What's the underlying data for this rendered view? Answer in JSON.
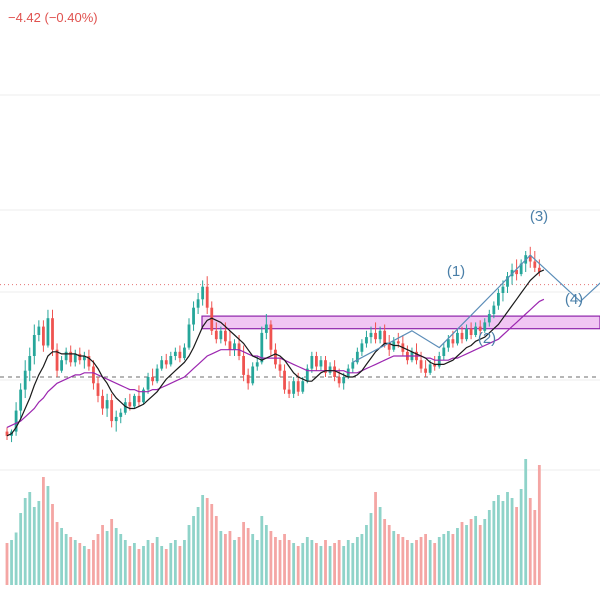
{
  "header": {
    "change_text": "−4.42 (−0.40%)"
  },
  "colors": {
    "up": "#26a69a",
    "down": "#ef5350",
    "ma_fast": "#1a1a1a",
    "ma_slow": "#9c27b0",
    "wave_line": "#5b8db8",
    "zone_fill": "#f1c6f3",
    "zone_border": "#8e24aa",
    "vol_up": "#8fd3c9",
    "vol_down": "#f4a6a4",
    "price_line": "#e57373",
    "support_line": "#6e6e6e",
    "grid": "#eeeeee"
  },
  "wave_labels": [
    "(1)",
    "(2)",
    "(3)",
    "(4)"
  ],
  "chart_data": {
    "type": "candlestick",
    "title": "",
    "xlabel": "",
    "ylabel": "",
    "ylim": [
      0,
      100
    ],
    "volume_ylim": [
      0,
      100
    ],
    "candles": [
      {
        "o": 4,
        "h": 6,
        "l": 0,
        "c": 2,
        "v": 28,
        "up": false
      },
      {
        "o": 2,
        "h": 5,
        "l": -1,
        "c": 4,
        "v": 30,
        "up": true
      },
      {
        "o": 4,
        "h": 18,
        "l": 2,
        "c": 14,
        "v": 35,
        "up": true
      },
      {
        "o": 14,
        "h": 27,
        "l": 10,
        "c": 24,
        "v": 48,
        "up": true
      },
      {
        "o": 24,
        "h": 38,
        "l": 20,
        "c": 33,
        "v": 58,
        "up": true
      },
      {
        "o": 33,
        "h": 44,
        "l": 28,
        "c": 40,
        "v": 62,
        "up": true
      },
      {
        "o": 40,
        "h": 55,
        "l": 36,
        "c": 50,
        "v": 52,
        "up": true
      },
      {
        "o": 50,
        "h": 57,
        "l": 47,
        "c": 54,
        "v": 56,
        "up": true
      },
      {
        "o": 54,
        "h": 57,
        "l": 42,
        "c": 45,
        "v": 72,
        "up": false
      },
      {
        "o": 45,
        "h": 62,
        "l": 44,
        "c": 58,
        "v": 66,
        "up": true
      },
      {
        "o": 58,
        "h": 62,
        "l": 40,
        "c": 43,
        "v": 54,
        "up": false
      },
      {
        "o": 43,
        "h": 46,
        "l": 30,
        "c": 33,
        "v": 42,
        "up": false
      },
      {
        "o": 33,
        "h": 40,
        "l": 32,
        "c": 38,
        "v": 38,
        "up": true
      },
      {
        "o": 38,
        "h": 44,
        "l": 36,
        "c": 42,
        "v": 34,
        "up": true
      },
      {
        "o": 42,
        "h": 45,
        "l": 35,
        "c": 37,
        "v": 32,
        "up": false
      },
      {
        "o": 37,
        "h": 43,
        "l": 35,
        "c": 41,
        "v": 30,
        "up": true
      },
      {
        "o": 41,
        "h": 44,
        "l": 36,
        "c": 38,
        "v": 28,
        "up": false
      },
      {
        "o": 38,
        "h": 42,
        "l": 34,
        "c": 40,
        "v": 26,
        "up": true
      },
      {
        "o": 40,
        "h": 43,
        "l": 33,
        "c": 35,
        "v": 24,
        "up": false
      },
      {
        "o": 35,
        "h": 38,
        "l": 24,
        "c": 27,
        "v": 30,
        "up": false
      },
      {
        "o": 27,
        "h": 30,
        "l": 18,
        "c": 21,
        "v": 34,
        "up": false
      },
      {
        "o": 21,
        "h": 24,
        "l": 12,
        "c": 15,
        "v": 40,
        "up": false
      },
      {
        "o": 15,
        "h": 22,
        "l": 11,
        "c": 19,
        "v": 36,
        "up": true
      },
      {
        "o": 19,
        "h": 22,
        "l": 6,
        "c": 9,
        "v": 44,
        "up": false
      },
      {
        "o": 9,
        "h": 14,
        "l": 4,
        "c": 11,
        "v": 38,
        "up": true
      },
      {
        "o": 11,
        "h": 15,
        "l": 8,
        "c": 13,
        "v": 34,
        "up": true
      },
      {
        "o": 13,
        "h": 20,
        "l": 12,
        "c": 18,
        "v": 30,
        "up": true
      },
      {
        "o": 18,
        "h": 22,
        "l": 14,
        "c": 16,
        "v": 26,
        "up": false
      },
      {
        "o": 16,
        "h": 22,
        "l": 15,
        "c": 21,
        "v": 28,
        "up": true
      },
      {
        "o": 21,
        "h": 26,
        "l": 16,
        "c": 18,
        "v": 24,
        "up": false
      },
      {
        "o": 18,
        "h": 25,
        "l": 17,
        "c": 24,
        "v": 26,
        "up": true
      },
      {
        "o": 24,
        "h": 32,
        "l": 22,
        "c": 30,
        "v": 30,
        "up": true
      },
      {
        "o": 30,
        "h": 34,
        "l": 26,
        "c": 28,
        "v": 28,
        "up": false
      },
      {
        "o": 28,
        "h": 36,
        "l": 27,
        "c": 34,
        "v": 32,
        "up": true
      },
      {
        "o": 34,
        "h": 40,
        "l": 33,
        "c": 38,
        "v": 26,
        "up": true
      },
      {
        "o": 38,
        "h": 41,
        "l": 34,
        "c": 36,
        "v": 24,
        "up": false
      },
      {
        "o": 36,
        "h": 42,
        "l": 35,
        "c": 40,
        "v": 28,
        "up": true
      },
      {
        "o": 40,
        "h": 44,
        "l": 38,
        "c": 42,
        "v": 30,
        "up": true
      },
      {
        "o": 42,
        "h": 45,
        "l": 37,
        "c": 39,
        "v": 26,
        "up": false
      },
      {
        "o": 39,
        "h": 46,
        "l": 38,
        "c": 44,
        "v": 30,
        "up": true
      },
      {
        "o": 44,
        "h": 58,
        "l": 43,
        "c": 55,
        "v": 40,
        "up": true
      },
      {
        "o": 55,
        "h": 66,
        "l": 52,
        "c": 63,
        "v": 46,
        "up": true
      },
      {
        "o": 63,
        "h": 70,
        "l": 60,
        "c": 67,
        "v": 52,
        "up": true
      },
      {
        "o": 67,
        "h": 76,
        "l": 64,
        "c": 73,
        "v": 60,
        "up": true
      },
      {
        "o": 73,
        "h": 78,
        "l": 60,
        "c": 63,
        "v": 58,
        "up": false
      },
      {
        "o": 63,
        "h": 66,
        "l": 50,
        "c": 52,
        "v": 54,
        "up": false
      },
      {
        "o": 52,
        "h": 56,
        "l": 46,
        "c": 48,
        "v": 46,
        "up": false
      },
      {
        "o": 48,
        "h": 54,
        "l": 46,
        "c": 52,
        "v": 36,
        "up": true
      },
      {
        "o": 52,
        "h": 56,
        "l": 45,
        "c": 47,
        "v": 34,
        "up": false
      },
      {
        "o": 47,
        "h": 52,
        "l": 40,
        "c": 43,
        "v": 36,
        "up": false
      },
      {
        "o": 43,
        "h": 48,
        "l": 40,
        "c": 46,
        "v": 30,
        "up": true
      },
      {
        "o": 46,
        "h": 50,
        "l": 38,
        "c": 40,
        "v": 32,
        "up": false
      },
      {
        "o": 40,
        "h": 45,
        "l": 28,
        "c": 31,
        "v": 42,
        "up": false
      },
      {
        "o": 31,
        "h": 34,
        "l": 24,
        "c": 27,
        "v": 38,
        "up": false
      },
      {
        "o": 27,
        "h": 37,
        "l": 26,
        "c": 35,
        "v": 34,
        "up": true
      },
      {
        "o": 35,
        "h": 40,
        "l": 33,
        "c": 37,
        "v": 30,
        "up": true
      },
      {
        "o": 37,
        "h": 54,
        "l": 36,
        "c": 51,
        "v": 46,
        "up": true
      },
      {
        "o": 51,
        "h": 60,
        "l": 48,
        "c": 55,
        "v": 40,
        "up": true
      },
      {
        "o": 55,
        "h": 57,
        "l": 40,
        "c": 43,
        "v": 36,
        "up": false
      },
      {
        "o": 43,
        "h": 46,
        "l": 34,
        "c": 36,
        "v": 32,
        "up": false
      },
      {
        "o": 36,
        "h": 39,
        "l": 30,
        "c": 33,
        "v": 30,
        "up": false
      },
      {
        "o": 33,
        "h": 36,
        "l": 22,
        "c": 24,
        "v": 34,
        "up": false
      },
      {
        "o": 24,
        "h": 28,
        "l": 20,
        "c": 22,
        "v": 30,
        "up": false
      },
      {
        "o": 22,
        "h": 30,
        "l": 20,
        "c": 28,
        "v": 28,
        "up": true
      },
      {
        "o": 28,
        "h": 32,
        "l": 21,
        "c": 23,
        "v": 26,
        "up": false
      },
      {
        "o": 23,
        "h": 30,
        "l": 22,
        "c": 28,
        "v": 28,
        "up": true
      },
      {
        "o": 28,
        "h": 36,
        "l": 27,
        "c": 34,
        "v": 32,
        "up": true
      },
      {
        "o": 34,
        "h": 42,
        "l": 32,
        "c": 40,
        "v": 30,
        "up": true
      },
      {
        "o": 40,
        "h": 42,
        "l": 33,
        "c": 35,
        "v": 28,
        "up": false
      },
      {
        "o": 35,
        "h": 40,
        "l": 33,
        "c": 38,
        "v": 26,
        "up": true
      },
      {
        "o": 38,
        "h": 40,
        "l": 30,
        "c": 32,
        "v": 30,
        "up": false
      },
      {
        "o": 32,
        "h": 37,
        "l": 31,
        "c": 35,
        "v": 26,
        "up": true
      },
      {
        "o": 35,
        "h": 38,
        "l": 28,
        "c": 30,
        "v": 28,
        "up": false
      },
      {
        "o": 30,
        "h": 34,
        "l": 25,
        "c": 27,
        "v": 30,
        "up": false
      },
      {
        "o": 27,
        "h": 32,
        "l": 24,
        "c": 30,
        "v": 26,
        "up": true
      },
      {
        "o": 30,
        "h": 36,
        "l": 29,
        "c": 34,
        "v": 30,
        "up": true
      },
      {
        "o": 34,
        "h": 39,
        "l": 32,
        "c": 37,
        "v": 28,
        "up": true
      },
      {
        "o": 37,
        "h": 44,
        "l": 36,
        "c": 42,
        "v": 32,
        "up": true
      },
      {
        "o": 42,
        "h": 48,
        "l": 40,
        "c": 46,
        "v": 34,
        "up": true
      },
      {
        "o": 46,
        "h": 52,
        "l": 44,
        "c": 49,
        "v": 40,
        "up": true
      },
      {
        "o": 49,
        "h": 54,
        "l": 46,
        "c": 51,
        "v": 48,
        "up": true
      },
      {
        "o": 51,
        "h": 56,
        "l": 46,
        "c": 48,
        "v": 62,
        "up": false
      },
      {
        "o": 48,
        "h": 54,
        "l": 46,
        "c": 52,
        "v": 52,
        "up": true
      },
      {
        "o": 52,
        "h": 55,
        "l": 44,
        "c": 46,
        "v": 44,
        "up": false
      },
      {
        "o": 46,
        "h": 50,
        "l": 40,
        "c": 43,
        "v": 40,
        "up": false
      },
      {
        "o": 43,
        "h": 49,
        "l": 42,
        "c": 47,
        "v": 36,
        "up": true
      },
      {
        "o": 47,
        "h": 51,
        "l": 44,
        "c": 46,
        "v": 34,
        "up": false
      },
      {
        "o": 46,
        "h": 50,
        "l": 40,
        "c": 42,
        "v": 32,
        "up": false
      },
      {
        "o": 42,
        "h": 45,
        "l": 36,
        "c": 38,
        "v": 30,
        "up": false
      },
      {
        "o": 38,
        "h": 44,
        "l": 37,
        "c": 42,
        "v": 28,
        "up": true
      },
      {
        "o": 42,
        "h": 46,
        "l": 36,
        "c": 38,
        "v": 30,
        "up": false
      },
      {
        "o": 38,
        "h": 42,
        "l": 32,
        "c": 34,
        "v": 32,
        "up": false
      },
      {
        "o": 34,
        "h": 38,
        "l": 30,
        "c": 32,
        "v": 34,
        "up": false
      },
      {
        "o": 32,
        "h": 38,
        "l": 31,
        "c": 36,
        "v": 30,
        "up": true
      },
      {
        "o": 36,
        "h": 40,
        "l": 33,
        "c": 35,
        "v": 28,
        "up": false
      },
      {
        "o": 35,
        "h": 42,
        "l": 34,
        "c": 40,
        "v": 32,
        "up": true
      },
      {
        "o": 40,
        "h": 46,
        "l": 38,
        "c": 44,
        "v": 34,
        "up": true
      },
      {
        "o": 44,
        "h": 50,
        "l": 42,
        "c": 48,
        "v": 36,
        "up": true
      },
      {
        "o": 48,
        "h": 52,
        "l": 44,
        "c": 46,
        "v": 34,
        "up": false
      },
      {
        "o": 46,
        "h": 53,
        "l": 45,
        "c": 51,
        "v": 38,
        "up": true
      },
      {
        "o": 51,
        "h": 54,
        "l": 46,
        "c": 48,
        "v": 42,
        "up": false
      },
      {
        "o": 48,
        "h": 55,
        "l": 47,
        "c": 53,
        "v": 40,
        "up": true
      },
      {
        "o": 53,
        "h": 56,
        "l": 48,
        "c": 50,
        "v": 44,
        "up": false
      },
      {
        "o": 50,
        "h": 56,
        "l": 49,
        "c": 54,
        "v": 46,
        "up": true
      },
      {
        "o": 54,
        "h": 57,
        "l": 50,
        "c": 52,
        "v": 40,
        "up": false
      },
      {
        "o": 52,
        "h": 58,
        "l": 51,
        "c": 56,
        "v": 44,
        "up": true
      },
      {
        "o": 56,
        "h": 62,
        "l": 54,
        "c": 60,
        "v": 50,
        "up": true
      },
      {
        "o": 60,
        "h": 66,
        "l": 58,
        "c": 64,
        "v": 56,
        "up": true
      },
      {
        "o": 64,
        "h": 72,
        "l": 62,
        "c": 70,
        "v": 60,
        "up": true
      },
      {
        "o": 70,
        "h": 76,
        "l": 66,
        "c": 73,
        "v": 56,
        "up": true
      },
      {
        "o": 73,
        "h": 80,
        "l": 70,
        "c": 78,
        "v": 62,
        "up": true
      },
      {
        "o": 78,
        "h": 84,
        "l": 74,
        "c": 81,
        "v": 58,
        "up": true
      },
      {
        "o": 81,
        "h": 86,
        "l": 76,
        "c": 79,
        "v": 52,
        "up": false
      },
      {
        "o": 79,
        "h": 86,
        "l": 78,
        "c": 84,
        "v": 64,
        "up": true
      },
      {
        "o": 84,
        "h": 90,
        "l": 80,
        "c": 88,
        "v": 84,
        "up": true
      },
      {
        "o": 88,
        "h": 92,
        "l": 82,
        "c": 85,
        "v": 58,
        "up": false
      },
      {
        "o": 85,
        "h": 90,
        "l": 80,
        "c": 82,
        "v": 50,
        "up": false
      },
      {
        "o": 82,
        "h": 86,
        "l": 78,
        "c": 80,
        "v": 80,
        "up": false
      }
    ],
    "ma_fast": [
      2,
      3,
      6,
      10,
      15,
      20,
      26,
      31,
      35,
      40,
      42,
      42,
      41,
      41,
      41,
      41,
      40,
      40,
      39,
      37,
      34,
      30,
      27,
      23,
      20,
      18,
      16,
      15,
      15,
      16,
      17,
      19,
      21,
      23,
      26,
      29,
      31,
      33,
      35,
      37,
      40,
      44,
      49,
      54,
      57,
      58,
      57,
      56,
      54,
      52,
      50,
      48,
      46,
      43,
      40,
      39,
      38,
      39,
      40,
      41,
      40,
      38,
      35,
      32,
      30,
      29,
      28,
      28,
      30,
      32,
      33,
      33,
      33,
      32,
      31,
      30,
      30,
      31,
      33,
      36,
      39,
      42,
      44,
      46,
      46,
      45,
      45,
      44,
      43,
      42,
      41,
      40,
      39,
      37,
      36,
      36,
      36,
      37,
      38,
      40,
      42,
      44,
      45,
      47,
      48,
      49,
      51,
      53,
      55,
      58,
      61,
      64,
      67,
      70,
      73,
      76,
      78,
      80,
      81
    ],
    "ma_slow": [
      6,
      7,
      8,
      9,
      11,
      13,
      15,
      18,
      20,
      23,
      25,
      27,
      28,
      29,
      30,
      31,
      31,
      32,
      32,
      32,
      31,
      30,
      29,
      28,
      27,
      26,
      25,
      24,
      24,
      23,
      23,
      23,
      24,
      24,
      25,
      26,
      27,
      28,
      29,
      30,
      32,
      34,
      36,
      38,
      40,
      41,
      42,
      43,
      43,
      43,
      43,
      43,
      42,
      41,
      40,
      40,
      39,
      39,
      39,
      39,
      39,
      38,
      37,
      36,
      35,
      34,
      33,
      33,
      33,
      33,
      33,
      33,
      33,
      33,
      33,
      32,
      32,
      32,
      33,
      34,
      35,
      36,
      37,
      38,
      39,
      40,
      40,
      40,
      40,
      40,
      40,
      40,
      39,
      39,
      38,
      38,
      38,
      38,
      39,
      39,
      40,
      41,
      42,
      43,
      44,
      45,
      46,
      47,
      48,
      50,
      52,
      54,
      56,
      58,
      60,
      62,
      64,
      66,
      67
    ],
    "resistance_zone": {
      "low": 53,
      "high": 59
    },
    "support_level": 30,
    "current_price_level": 74,
    "wave_path": [
      {
        "i": 76,
        "y": 37
      },
      {
        "i": 89,
        "y": 52
      },
      {
        "i": 95,
        "y": 44
      },
      {
        "i": 115,
        "y": 88
      },
      {
        "i": 126,
        "y": 66
      },
      {
        "i": 139,
        "y": 92
      }
    ]
  }
}
